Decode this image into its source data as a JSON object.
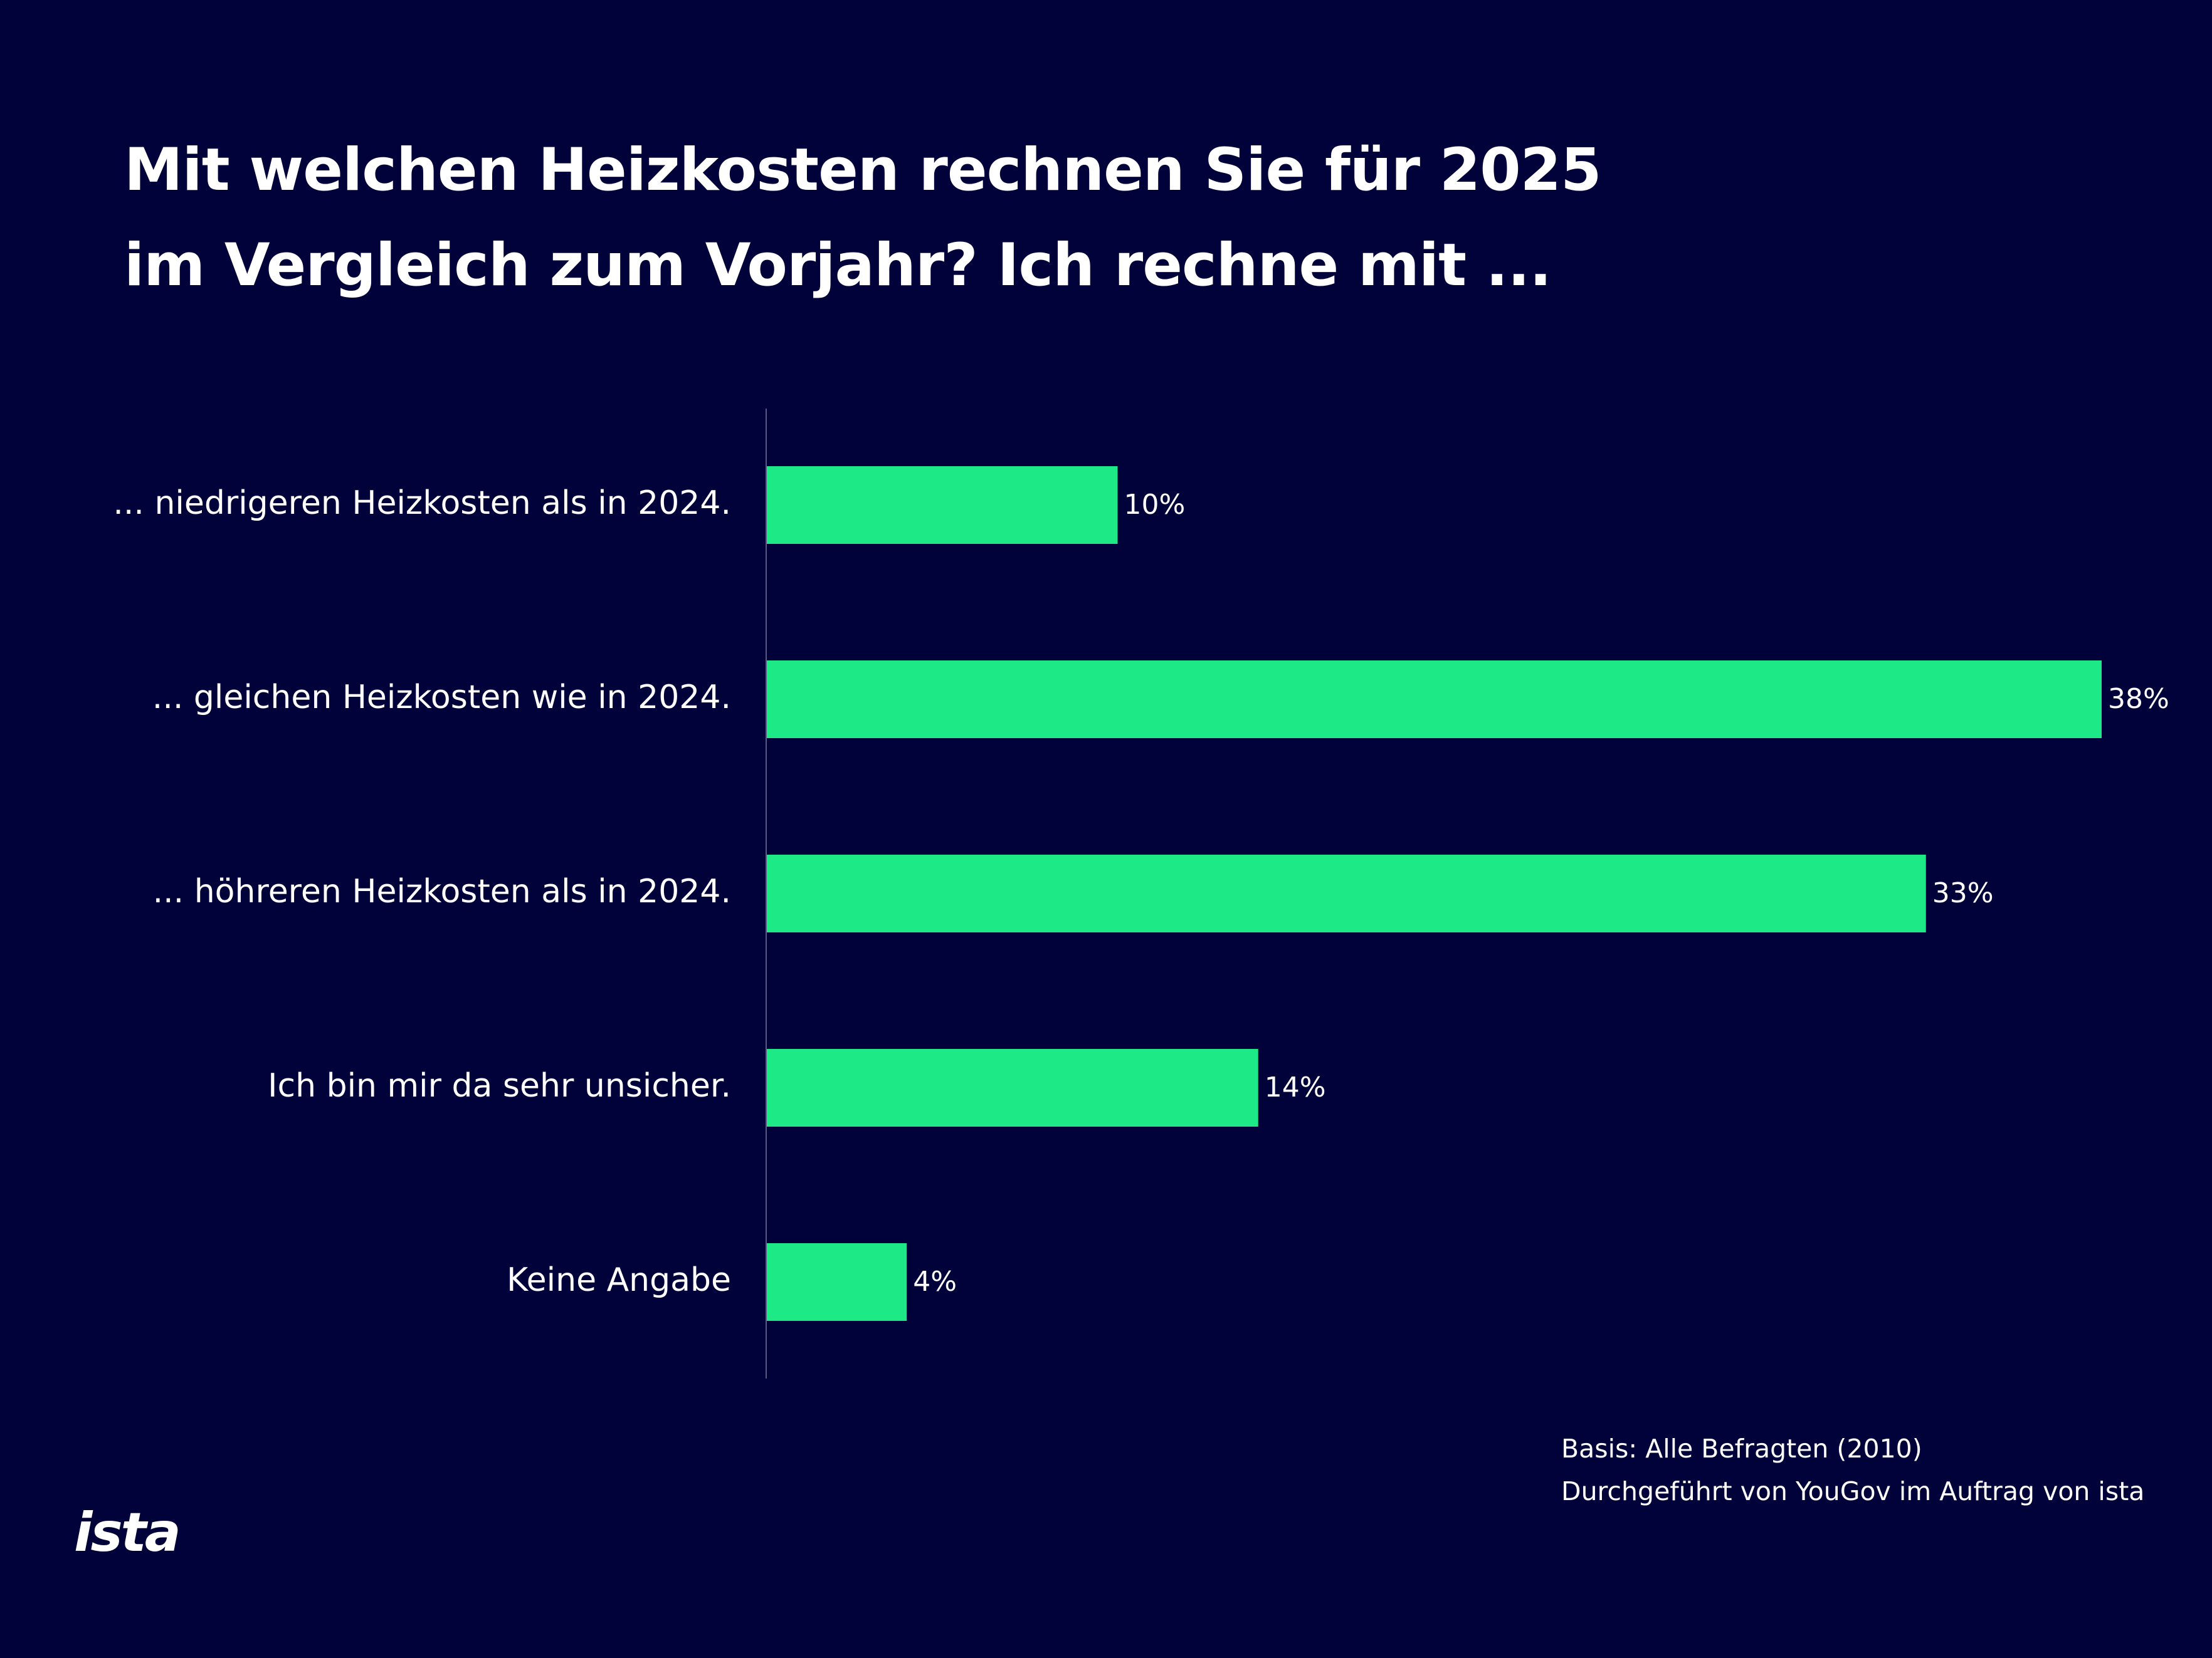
{
  "title": {
    "line1": "Mit welchen Heizkosten rechnen Sie für 2025",
    "line2": "im Vergleich zum Vorjahr? Ich rechne mit ..."
  },
  "colors": {
    "background": "#02023a",
    "bar": "#1de986",
    "axis": "#5a5a80",
    "text": "#ffffff"
  },
  "chart_data": {
    "type": "bar",
    "orientation": "horizontal",
    "categories": [
      "... niedrigeren Heizkosten als in 2024.",
      "... gleichen Heizkosten wie in 2024.",
      "... höhreren Heizkosten als in 2024.",
      "Ich bin mir da sehr unsicher.",
      "Keine Angabe"
    ],
    "values": [
      10,
      38,
      33,
      14,
      4
    ],
    "value_labels": [
      "10%",
      "38%",
      "33%",
      "14%",
      "4%"
    ],
    "unit": "%",
    "xlim": [
      0,
      38
    ],
    "grid": false,
    "legend": "none"
  },
  "footnote": {
    "line1": "Basis: Alle Befragten (2010)",
    "line2": "Durchgeführt von YouGov im Auftrag von ista"
  },
  "logo": {
    "text": "ista"
  }
}
